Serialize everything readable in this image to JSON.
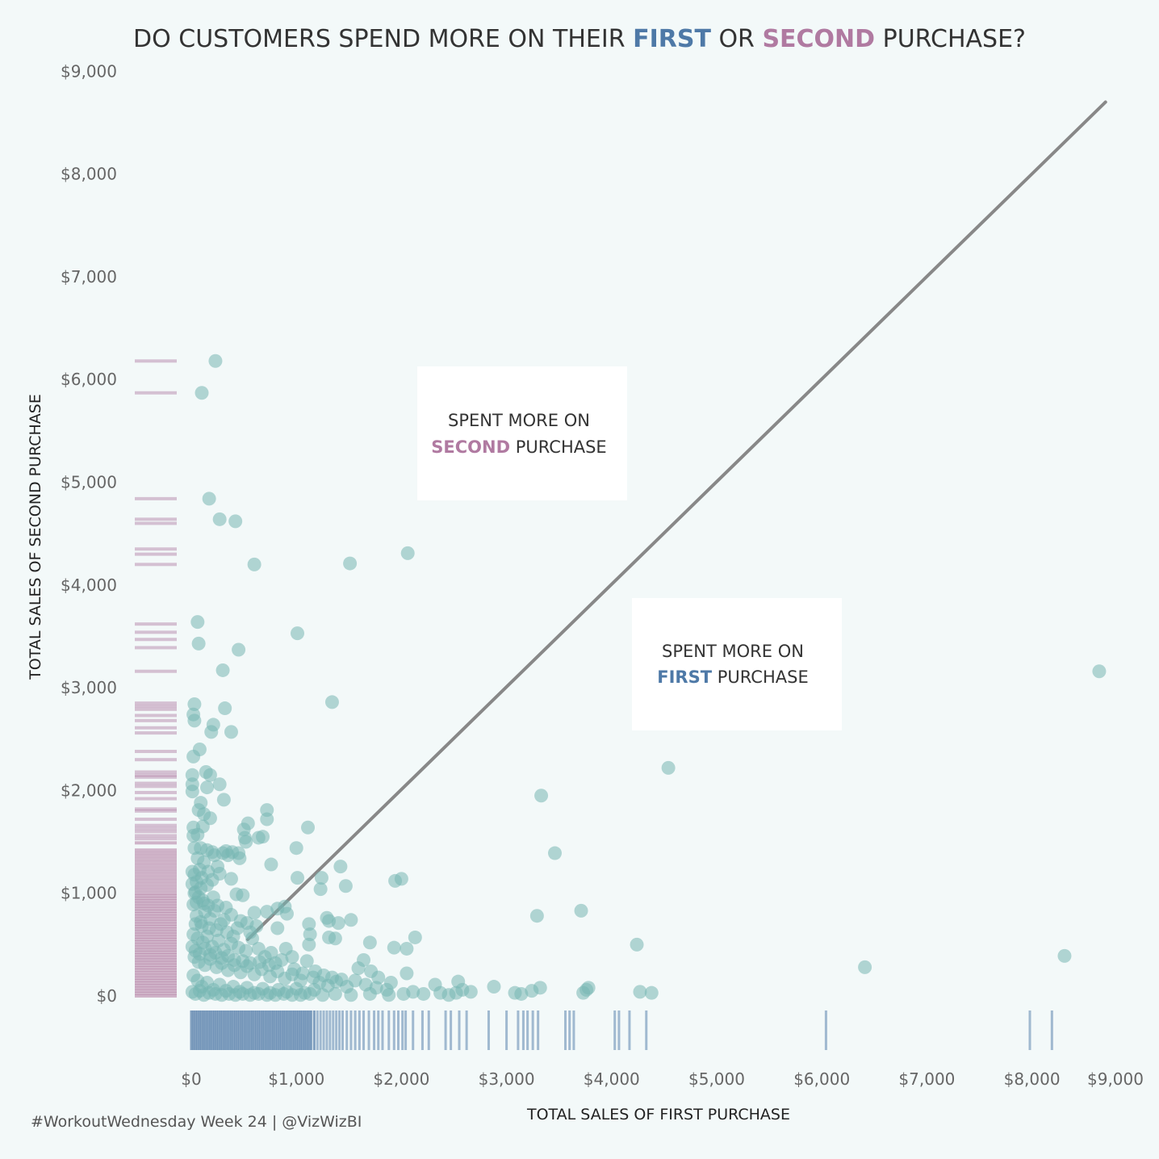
{
  "title": {
    "part1": "DO CUSTOMERS SPEND MORE ON THEIR ",
    "first": "FIRST",
    "part2": " OR ",
    "second": "SECOND",
    "part3": " PURCHASE?"
  },
  "colors": {
    "first": "#4e79a7",
    "second": "#b07aa1",
    "points": "#76b7b2",
    "diagonal": "#888888",
    "background": "#f3f9f9"
  },
  "annotations": {
    "second_box": {
      "line1": "SPENT MORE ON",
      "highlight": "SECOND",
      "rest": " PURCHASE"
    },
    "first_box": {
      "line1": "SPENT MORE ON",
      "highlight": "FIRST",
      "rest": " PURCHASE"
    }
  },
  "footer": "#WorkoutWednesday Week 24  |  @VizWizBI",
  "chart_data": {
    "type": "scatter",
    "xlabel": "TOTAL SALES OF FIRST PURCHASE",
    "ylabel": "TOTAL SALES OF SECOND PURCHASE",
    "xlim": [
      0,
      9000
    ],
    "ylim": [
      0,
      9000
    ],
    "x_ticks": [
      "$0",
      "$1,000",
      "$2,000",
      "$3,000",
      "$4,000",
      "$5,000",
      "$6,000",
      "$7,000",
      "$8,000",
      "$9,000"
    ],
    "y_ticks": [
      "$0",
      "$1,000",
      "$2,000",
      "$3,000",
      "$4,000",
      "$5,000",
      "$6,000",
      "$7,000",
      "$8,000",
      "$9,000"
    ],
    "reference_line": {
      "type": "diagonal",
      "from": [
        0,
        0
      ],
      "to": [
        8700,
        8700
      ]
    },
    "grid": false,
    "marginal_rug": {
      "x_axis": "first purchase",
      "y_axis": "second purchase"
    },
    "points": [
      {
        "x": 230,
        "y": 6180
      },
      {
        "x": 100,
        "y": 5870
      },
      {
        "x": 170,
        "y": 4840
      },
      {
        "x": 270,
        "y": 4640
      },
      {
        "x": 420,
        "y": 4620
      },
      {
        "x": 600,
        "y": 4200
      },
      {
        "x": 1510,
        "y": 4210
      },
      {
        "x": 2060,
        "y": 4310
      },
      {
        "x": 60,
        "y": 3640
      },
      {
        "x": 70,
        "y": 3430
      },
      {
        "x": 450,
        "y": 3370
      },
      {
        "x": 1010,
        "y": 3530
      },
      {
        "x": 300,
        "y": 3170
      },
      {
        "x": 1340,
        "y": 2860
      },
      {
        "x": 30,
        "y": 2840
      },
      {
        "x": 320,
        "y": 2800
      },
      {
        "x": 20,
        "y": 2740
      },
      {
        "x": 30,
        "y": 2680
      },
      {
        "x": 210,
        "y": 2640
      },
      {
        "x": 190,
        "y": 2570
      },
      {
        "x": 380,
        "y": 2570
      },
      {
        "x": 80,
        "y": 2400
      },
      {
        "x": 20,
        "y": 2330
      },
      {
        "x": 140,
        "y": 2180
      },
      {
        "x": 10,
        "y": 2150
      },
      {
        "x": 180,
        "y": 2150
      },
      {
        "x": 10,
        "y": 2060
      },
      {
        "x": 270,
        "y": 2060
      },
      {
        "x": 150,
        "y": 2030
      },
      {
        "x": 10,
        "y": 1990
      },
      {
        "x": 310,
        "y": 1910
      },
      {
        "x": 90,
        "y": 1880
      },
      {
        "x": 70,
        "y": 1810
      },
      {
        "x": 720,
        "y": 1810
      },
      {
        "x": 120,
        "y": 1770
      },
      {
        "x": 180,
        "y": 1730
      },
      {
        "x": 720,
        "y": 1720
      },
      {
        "x": 540,
        "y": 1680
      },
      {
        "x": 20,
        "y": 1640
      },
      {
        "x": 110,
        "y": 1650
      },
      {
        "x": 500,
        "y": 1620
      },
      {
        "x": 1110,
        "y": 1640
      },
      {
        "x": 20,
        "y": 1560
      },
      {
        "x": 60,
        "y": 1570
      },
      {
        "x": 510,
        "y": 1540
      },
      {
        "x": 640,
        "y": 1540
      },
      {
        "x": 680,
        "y": 1550
      },
      {
        "x": 520,
        "y": 1500
      },
      {
        "x": 30,
        "y": 1440
      },
      {
        "x": 90,
        "y": 1440
      },
      {
        "x": 150,
        "y": 1420
      },
      {
        "x": 200,
        "y": 1400
      },
      {
        "x": 300,
        "y": 1390
      },
      {
        "x": 330,
        "y": 1410
      },
      {
        "x": 390,
        "y": 1400
      },
      {
        "x": 450,
        "y": 1390
      },
      {
        "x": 1000,
        "y": 1440
      },
      {
        "x": 60,
        "y": 1340
      },
      {
        "x": 120,
        "y": 1300
      },
      {
        "x": 460,
        "y": 1340
      },
      {
        "x": 1420,
        "y": 1260
      },
      {
        "x": 760,
        "y": 1280
      },
      {
        "x": 10,
        "y": 1210
      },
      {
        "x": 30,
        "y": 1180
      },
      {
        "x": 100,
        "y": 1150
      },
      {
        "x": 160,
        "y": 1210
      },
      {
        "x": 200,
        "y": 1130
      },
      {
        "x": 270,
        "y": 1190
      },
      {
        "x": 380,
        "y": 1140
      },
      {
        "x": 1010,
        "y": 1150
      },
      {
        "x": 1240,
        "y": 1150
      },
      {
        "x": 1940,
        "y": 1120
      },
      {
        "x": 2000,
        "y": 1140
      },
      {
        "x": 1470,
        "y": 1070
      },
      {
        "x": 1230,
        "y": 1040
      },
      {
        "x": 40,
        "y": 1010
      },
      {
        "x": 90,
        "y": 1050
      },
      {
        "x": 150,
        "y": 1080
      },
      {
        "x": 210,
        "y": 960
      },
      {
        "x": 430,
        "y": 990
      },
      {
        "x": 490,
        "y": 980
      },
      {
        "x": 890,
        "y": 870
      },
      {
        "x": 820,
        "y": 850
      },
      {
        "x": 20,
        "y": 890
      },
      {
        "x": 50,
        "y": 910
      },
      {
        "x": 120,
        "y": 900
      },
      {
        "x": 250,
        "y": 880
      },
      {
        "x": 600,
        "y": 810
      },
      {
        "x": 720,
        "y": 820
      },
      {
        "x": 910,
        "y": 800
      },
      {
        "x": 1290,
        "y": 760
      },
      {
        "x": 1310,
        "y": 730
      },
      {
        "x": 1520,
        "y": 740
      },
      {
        "x": 3290,
        "y": 780
      },
      {
        "x": 3710,
        "y": 830
      },
      {
        "x": 1400,
        "y": 710
      },
      {
        "x": 1120,
        "y": 700
      },
      {
        "x": 470,
        "y": 730
      },
      {
        "x": 530,
        "y": 710
      },
      {
        "x": 310,
        "y": 740
      },
      {
        "x": 40,
        "y": 700
      },
      {
        "x": 100,
        "y": 680
      },
      {
        "x": 170,
        "y": 660
      },
      {
        "x": 820,
        "y": 660
      },
      {
        "x": 1130,
        "y": 600
      },
      {
        "x": 1310,
        "y": 570
      },
      {
        "x": 1370,
        "y": 560
      },
      {
        "x": 2130,
        "y": 570
      },
      {
        "x": 1700,
        "y": 520
      },
      {
        "x": 1120,
        "y": 500
      },
      {
        "x": 1930,
        "y": 470
      },
      {
        "x": 2050,
        "y": 460
      },
      {
        "x": 4240,
        "y": 500
      },
      {
        "x": 20,
        "y": 600
      },
      {
        "x": 60,
        "y": 560
      },
      {
        "x": 110,
        "y": 520
      },
      {
        "x": 150,
        "y": 580
      },
      {
        "x": 200,
        "y": 480
      },
      {
        "x": 260,
        "y": 540
      },
      {
        "x": 310,
        "y": 450
      },
      {
        "x": 380,
        "y": 510
      },
      {
        "x": 450,
        "y": 470
      },
      {
        "x": 520,
        "y": 440
      },
      {
        "x": 580,
        "y": 560
      },
      {
        "x": 640,
        "y": 460
      },
      {
        "x": 700,
        "y": 380
      },
      {
        "x": 760,
        "y": 420
      },
      {
        "x": 860,
        "y": 350
      },
      {
        "x": 900,
        "y": 460
      },
      {
        "x": 960,
        "y": 380
      },
      {
        "x": 1100,
        "y": 340
      },
      {
        "x": 1640,
        "y": 350
      },
      {
        "x": 1590,
        "y": 270
      },
      {
        "x": 1710,
        "y": 240
      },
      {
        "x": 1780,
        "y": 180
      },
      {
        "x": 6410,
        "y": 280
      },
      {
        "x": 8310,
        "y": 390
      },
      {
        "x": 8640,
        "y": 3160
      },
      {
        "x": 4540,
        "y": 2220
      },
      {
        "x": 3330,
        "y": 1950
      },
      {
        "x": 3460,
        "y": 1390
      },
      {
        "x": 30,
        "y": 380
      },
      {
        "x": 70,
        "y": 330
      },
      {
        "x": 130,
        "y": 300
      },
      {
        "x": 180,
        "y": 360
      },
      {
        "x": 240,
        "y": 280
      },
      {
        "x": 290,
        "y": 320
      },
      {
        "x": 350,
        "y": 250
      },
      {
        "x": 410,
        "y": 300
      },
      {
        "x": 470,
        "y": 230
      },
      {
        "x": 530,
        "y": 290
      },
      {
        "x": 600,
        "y": 210
      },
      {
        "x": 670,
        "y": 260
      },
      {
        "x": 750,
        "y": 190
      },
      {
        "x": 820,
        "y": 240
      },
      {
        "x": 890,
        "y": 170
      },
      {
        "x": 960,
        "y": 210
      },
      {
        "x": 1040,
        "y": 150
      },
      {
        "x": 1160,
        "y": 180
      },
      {
        "x": 1220,
        "y": 130
      },
      {
        "x": 1300,
        "y": 100
      },
      {
        "x": 1380,
        "y": 140
      },
      {
        "x": 1480,
        "y": 90
      },
      {
        "x": 1560,
        "y": 150
      },
      {
        "x": 1660,
        "y": 110
      },
      {
        "x": 1760,
        "y": 80
      },
      {
        "x": 1860,
        "y": 60
      },
      {
        "x": 2050,
        "y": 220
      },
      {
        "x": 2110,
        "y": 40
      },
      {
        "x": 2320,
        "y": 110
      },
      {
        "x": 2370,
        "y": 30
      },
      {
        "x": 2540,
        "y": 140
      },
      {
        "x": 2580,
        "y": 60
      },
      {
        "x": 2660,
        "y": 40
      },
      {
        "x": 2880,
        "y": 90
      },
      {
        "x": 3080,
        "y": 30
      },
      {
        "x": 3240,
        "y": 50
      },
      {
        "x": 3320,
        "y": 80
      },
      {
        "x": 3730,
        "y": 30
      },
      {
        "x": 3780,
        "y": 80
      },
      {
        "x": 4270,
        "y": 40
      },
      {
        "x": 4380,
        "y": 30
      },
      {
        "x": 20,
        "y": 200
      },
      {
        "x": 60,
        "y": 150
      },
      {
        "x": 100,
        "y": 90
      },
      {
        "x": 150,
        "y": 130
      },
      {
        "x": 210,
        "y": 60
      },
      {
        "x": 270,
        "y": 110
      },
      {
        "x": 330,
        "y": 50
      },
      {
        "x": 400,
        "y": 90
      },
      {
        "x": 460,
        "y": 40
      },
      {
        "x": 530,
        "y": 80
      },
      {
        "x": 600,
        "y": 30
      },
      {
        "x": 680,
        "y": 70
      },
      {
        "x": 750,
        "y": 30
      },
      {
        "x": 830,
        "y": 60
      },
      {
        "x": 910,
        "y": 40
      },
      {
        "x": 1000,
        "y": 70
      },
      {
        "x": 1080,
        "y": 30
      },
      {
        "x": 1170,
        "y": 60
      },
      {
        "x": 10,
        "y": 40
      },
      {
        "x": 40,
        "y": 20
      },
      {
        "x": 80,
        "y": 50
      },
      {
        "x": 120,
        "y": 10
      },
      {
        "x": 170,
        "y": 30
      },
      {
        "x": 230,
        "y": 20
      },
      {
        "x": 290,
        "y": 10
      },
      {
        "x": 360,
        "y": 20
      },
      {
        "x": 420,
        "y": 10
      },
      {
        "x": 490,
        "y": 20
      },
      {
        "x": 560,
        "y": 10
      },
      {
        "x": 640,
        "y": 20
      },
      {
        "x": 720,
        "y": 10
      },
      {
        "x": 800,
        "y": 10
      },
      {
        "x": 880,
        "y": 20
      },
      {
        "x": 960,
        "y": 10
      },
      {
        "x": 1040,
        "y": 10
      },
      {
        "x": 1130,
        "y": 20
      },
      {
        "x": 1250,
        "y": 10
      },
      {
        "x": 1370,
        "y": 20
      },
      {
        "x": 1520,
        "y": 10
      },
      {
        "x": 1700,
        "y": 20
      },
      {
        "x": 1880,
        "y": 10
      },
      {
        "x": 2020,
        "y": 20
      },
      {
        "x": 2210,
        "y": 20
      },
      {
        "x": 2450,
        "y": 10
      },
      {
        "x": 2520,
        "y": 30
      },
      {
        "x": 3140,
        "y": 20
      },
      {
        "x": 3760,
        "y": 60
      },
      {
        "x": 50,
        "y": 780
      },
      {
        "x": 90,
        "y": 720
      },
      {
        "x": 130,
        "y": 820
      },
      {
        "x": 180,
        "y": 750
      },
      {
        "x": 240,
        "y": 640
      },
      {
        "x": 280,
        "y": 700
      },
      {
        "x": 340,
        "y": 620
      },
      {
        "x": 400,
        "y": 580
      },
      {
        "x": 560,
        "y": 620
      },
      {
        "x": 620,
        "y": 680
      },
      {
        "x": 10,
        "y": 480
      },
      {
        "x": 40,
        "y": 440
      },
      {
        "x": 80,
        "y": 410
      },
      {
        "x": 130,
        "y": 460
      },
      {
        "x": 180,
        "y": 400
      },
      {
        "x": 230,
        "y": 420
      },
      {
        "x": 290,
        "y": 370
      },
      {
        "x": 350,
        "y": 390
      },
      {
        "x": 410,
        "y": 350
      },
      {
        "x": 490,
        "y": 340
      },
      {
        "x": 560,
        "y": 320
      },
      {
        "x": 650,
        "y": 330
      },
      {
        "x": 740,
        "y": 300
      },
      {
        "x": 800,
        "y": 320
      },
      {
        "x": 980,
        "y": 260
      },
      {
        "x": 1060,
        "y": 220
      },
      {
        "x": 1180,
        "y": 240
      },
      {
        "x": 1260,
        "y": 200
      },
      {
        "x": 1340,
        "y": 180
      },
      {
        "x": 1430,
        "y": 160
      },
      {
        "x": 1900,
        "y": 130
      },
      {
        "x": 30,
        "y": 1000
      },
      {
        "x": 70,
        "y": 960
      },
      {
        "x": 110,
        "y": 930
      },
      {
        "x": 160,
        "y": 880
      },
      {
        "x": 220,
        "y": 830
      },
      {
        "x": 330,
        "y": 860
      },
      {
        "x": 380,
        "y": 790
      },
      {
        "x": 440,
        "y": 660
      },
      {
        "x": 10,
        "y": 1090
      },
      {
        "x": 50,
        "y": 1110
      },
      {
        "x": 80,
        "y": 1230
      },
      {
        "x": 250,
        "y": 1260
      },
      {
        "x": 220,
        "y": 1370
      },
      {
        "x": 350,
        "y": 1370
      }
    ],
    "rug_first": [
      0,
      20,
      40,
      60,
      80,
      100,
      120,
      140,
      160,
      180,
      200,
      220,
      240,
      260,
      280,
      300,
      320,
      340,
      360,
      380,
      400,
      420,
      440,
      460,
      480,
      500,
      520,
      540,
      560,
      580,
      600,
      620,
      640,
      660,
      680,
      700,
      720,
      740,
      760,
      780,
      800,
      820,
      840,
      860,
      880,
      900,
      920,
      940,
      960,
      980,
      1000,
      1020,
      1040,
      1060,
      1080,
      1100,
      1120,
      1140,
      1170,
      1200,
      1230,
      1260,
      1290,
      1320,
      1350,
      1380,
      1410,
      1440,
      1480,
      1520,
      1560,
      1600,
      1640,
      1690,
      1740,
      1780,
      1820,
      1880,
      1930,
      1970,
      2010,
      2040,
      2110,
      2200,
      2260,
      2420,
      2470,
      2550,
      2620,
      2830,
      3000,
      3110,
      3160,
      3200,
      3250,
      3300,
      3560,
      3600,
      3640,
      4030,
      4070,
      4170,
      4330,
      6040,
      7980,
      8190
    ],
    "rug_second": [
      0,
      25,
      50,
      75,
      100,
      125,
      150,
      175,
      200,
      225,
      250,
      275,
      300,
      325,
      350,
      375,
      400,
      425,
      450,
      475,
      500,
      525,
      550,
      575,
      600,
      625,
      650,
      675,
      700,
      725,
      750,
      775,
      800,
      825,
      850,
      875,
      900,
      925,
      950,
      975,
      1000,
      1030,
      1060,
      1090,
      1120,
      1150,
      1180,
      1210,
      1240,
      1270,
      1300,
      1330,
      1360,
      1390,
      1420,
      1490,
      1530,
      1560,
      1600,
      1630,
      1660,
      1720,
      1800,
      1820,
      1920,
      1980,
      2040,
      2070,
      2130,
      2150,
      2180,
      2300,
      2380,
      2560,
      2610,
      2680,
      2730,
      2790,
      2820,
      2850,
      3160,
      3390,
      3470,
      3540,
      3620,
      4200,
      4300,
      4350,
      4600,
      4640,
      4840,
      5870,
      6180
    ]
  }
}
